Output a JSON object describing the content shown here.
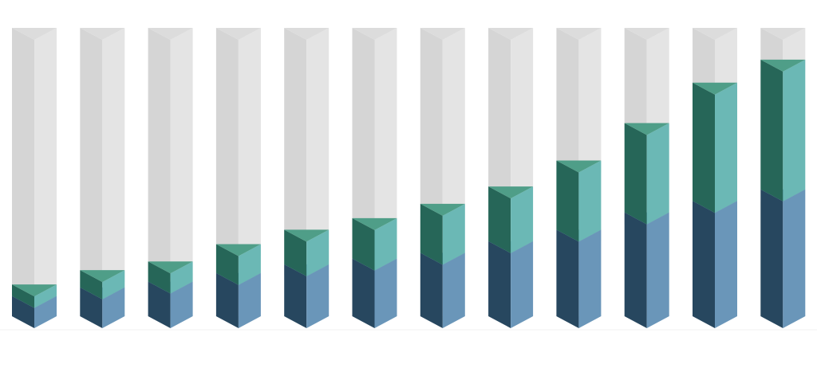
{
  "chart_data": {
    "type": "prism-stacked-bar",
    "categories": [
      null,
      null,
      null,
      null,
      null,
      null,
      null,
      null,
      null,
      null,
      null,
      null
    ],
    "series": [
      {
        "color": "#6a96b9",
        "dark_color": "#27475f",
        "cap_color": "#4a7aa0",
        "values": [
          7,
          10,
          12,
          15,
          18,
          20,
          22,
          26,
          30,
          36,
          40,
          44
        ]
      },
      {
        "color": "#6bb8b5",
        "dark_color": "#266658",
        "cap_color": "#4f9e88",
        "values": [
          4,
          6,
          7,
          10,
          12,
          14,
          17,
          19,
          24,
          31,
          41,
          45
        ]
      }
    ],
    "track_color": "#e4e4e4",
    "track_dark_color": "#d5d5d5",
    "track_cap_color": "#dcdcdc",
    "ylim": [
      0,
      100
    ]
  }
}
